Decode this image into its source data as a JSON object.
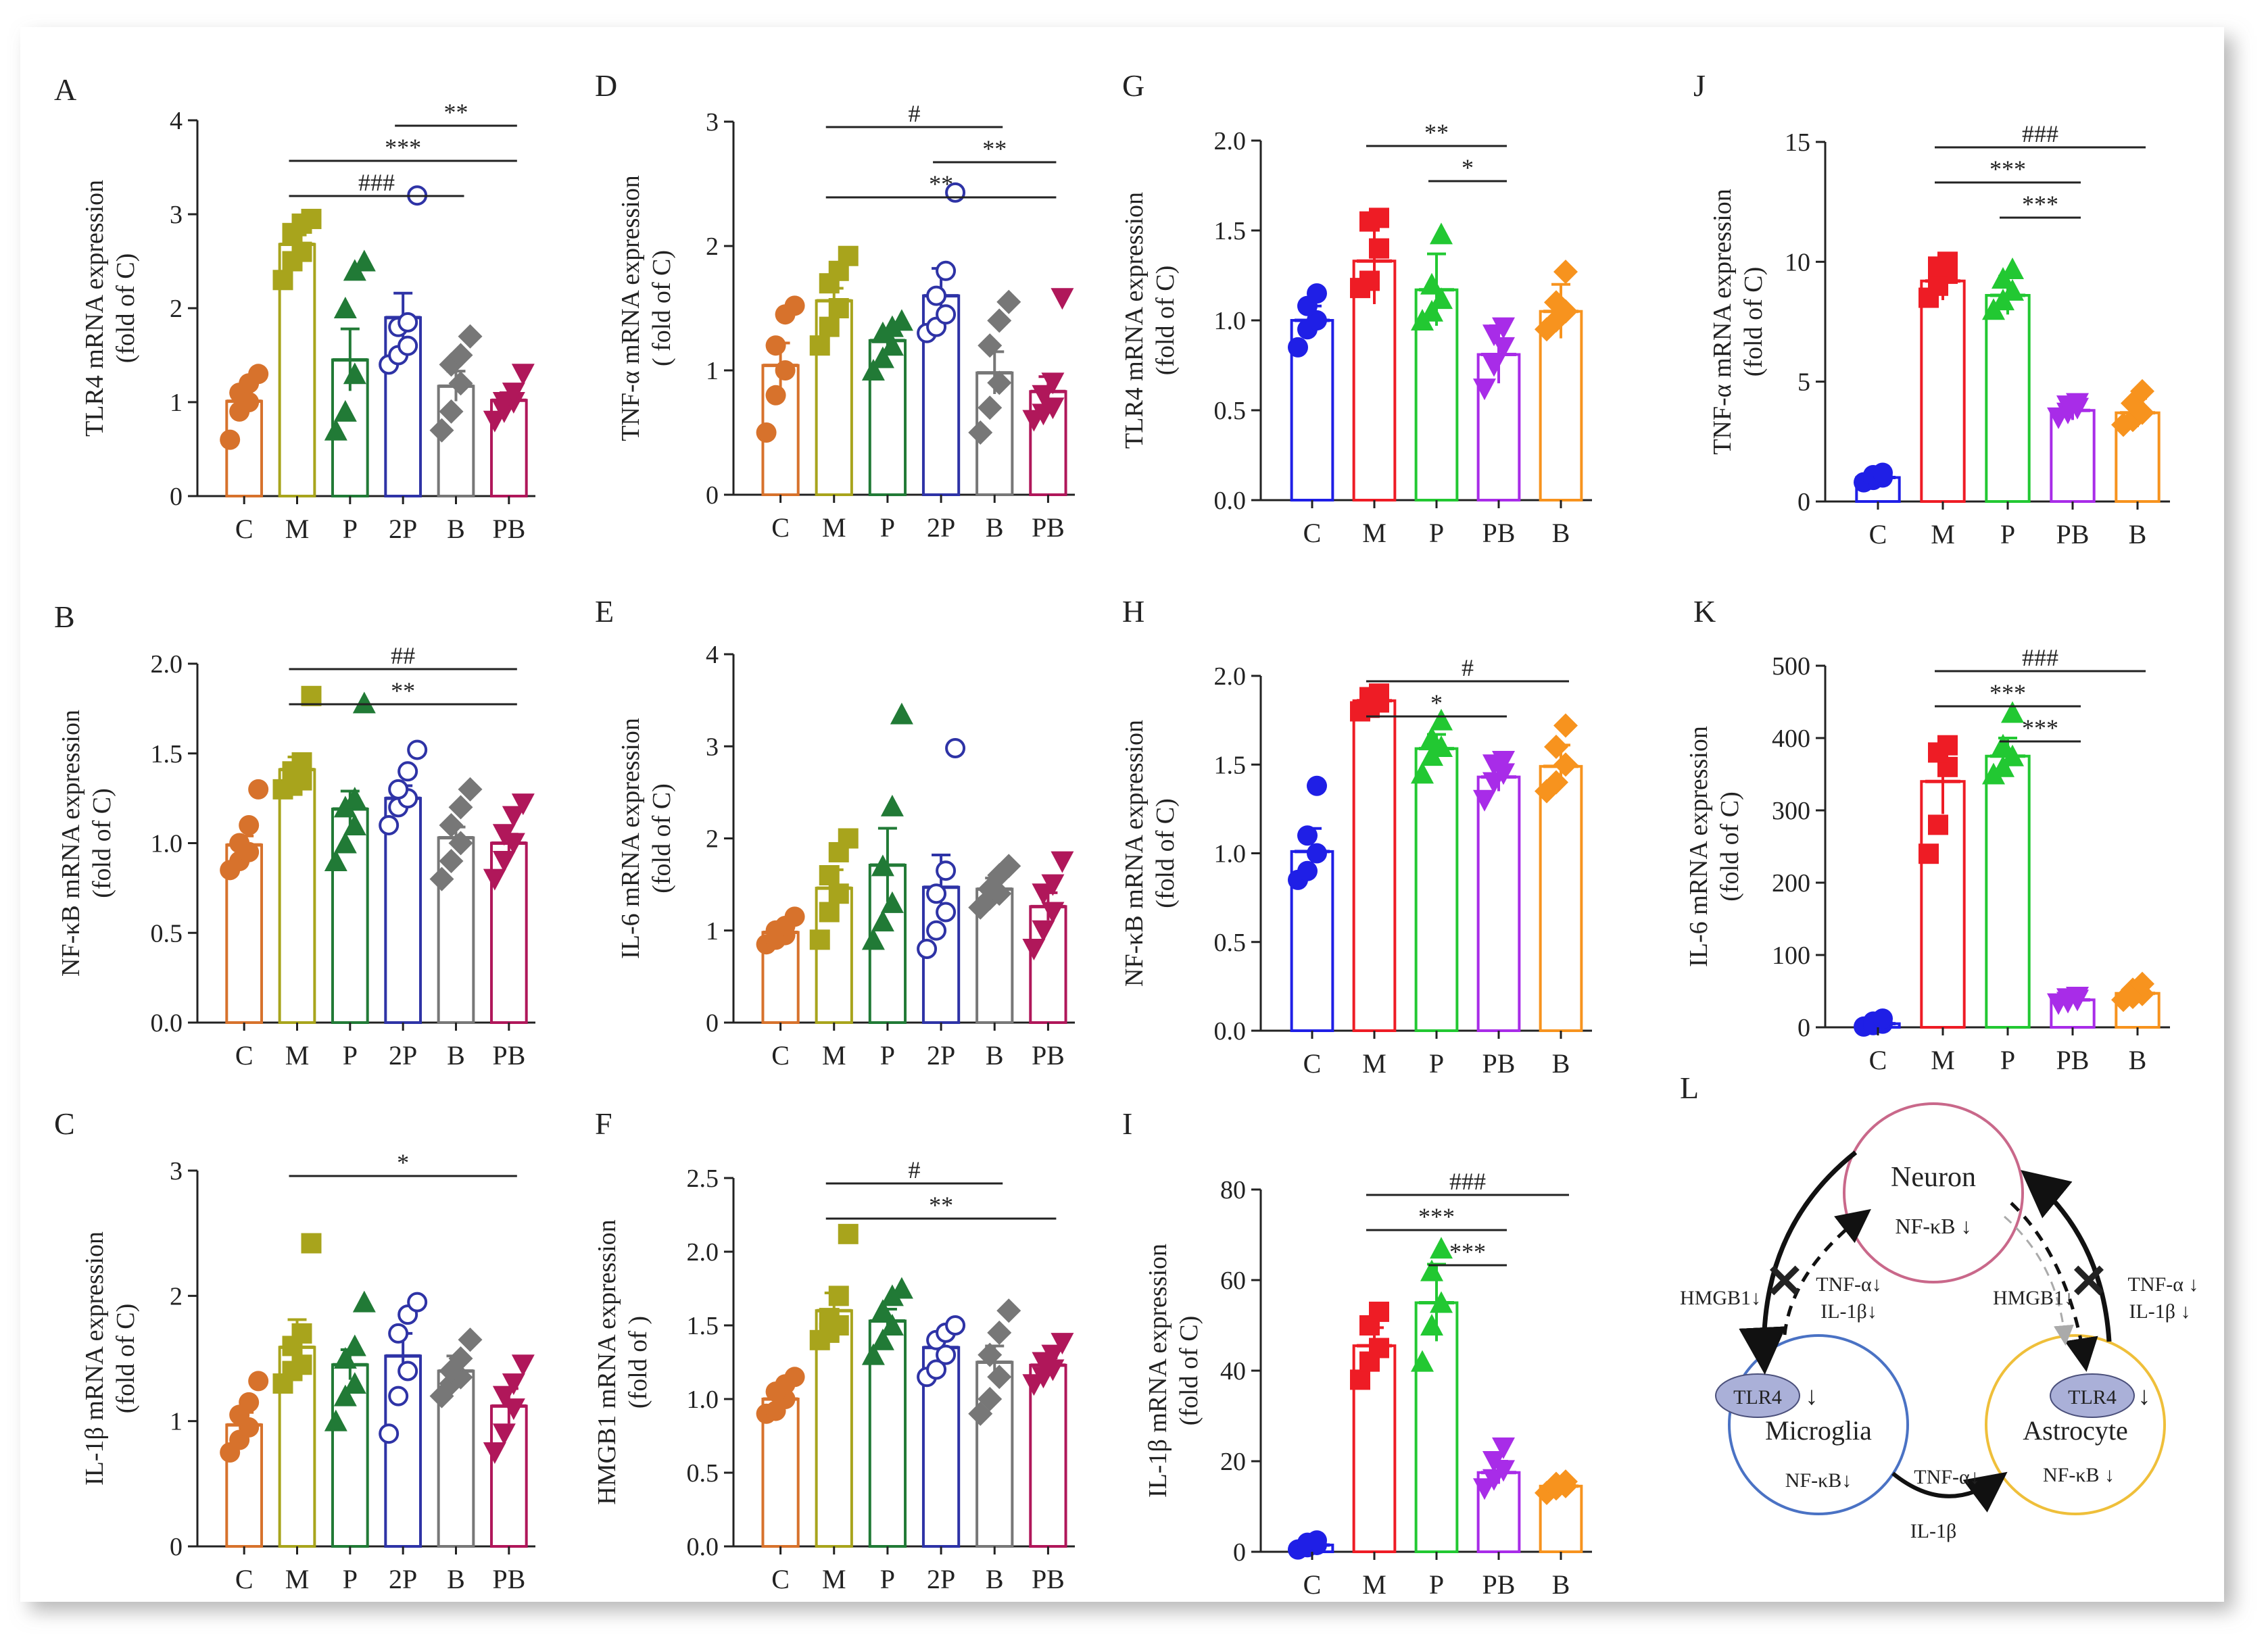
{
  "chart_data": [
    {
      "id": "A",
      "type": "bar",
      "panel_label": "A",
      "ylabel": [
        "TLR4 mRNA expression",
        "(fold of C)"
      ],
      "categories": [
        "C",
        "M",
        "P",
        "2P",
        "B",
        "PB"
      ],
      "values": [
        1.01,
        2.68,
        1.45,
        1.9,
        1.17,
        1.02
      ],
      "errors": [
        0.12,
        0.1,
        0.33,
        0.26,
        0.16,
        0.08
      ],
      "points": [
        [
          0.6,
          0.9,
          1.0,
          1.1,
          1.2,
          1.3
        ],
        [
          2.3,
          2.5,
          2.6,
          2.8,
          2.9,
          2.95
        ],
        [
          0.7,
          0.9,
          1.3,
          2.0,
          2.4,
          2.5
        ],
        [
          1.4,
          1.5,
          1.6,
          1.8,
          1.85,
          3.2
        ],
        [
          0.7,
          0.9,
          1.2,
          1.4,
          1.5,
          1.7
        ],
        [
          0.8,
          0.9,
          1.0,
          1.0,
          1.1,
          1.3
        ]
      ],
      "yticks": [
        "0",
        "1",
        "2",
        "3",
        "4"
      ],
      "ylim": [
        0,
        4
      ],
      "sig": [
        {
          "text": "**",
          "from": 3,
          "to": 5,
          "level": 0.0
        },
        {
          "text": "***",
          "from": 1,
          "to": 5,
          "level": 1.0
        },
        {
          "text": "###",
          "from": 1,
          "to": 4,
          "level": 2.0
        }
      ]
    },
    {
      "id": "B",
      "type": "bar",
      "panel_label": "B",
      "ylabel": [
        "NF-κB mRNA expression",
        "(fold of C)"
      ],
      "categories": [
        "C",
        "M",
        "P",
        "2P",
        "B",
        "PB"
      ],
      "values": [
        0.99,
        1.41,
        1.19,
        1.25,
        1.03,
        1.0
      ],
      "errors": [
        0.05,
        0.07,
        0.1,
        0.07,
        0.06,
        0.05
      ],
      "points": [
        [
          0.85,
          0.9,
          0.95,
          1.0,
          1.1,
          1.3
        ],
        [
          1.3,
          1.32,
          1.35,
          1.4,
          1.45,
          1.82
        ],
        [
          0.9,
          1.0,
          1.1,
          1.2,
          1.25,
          1.78
        ],
        [
          1.1,
          1.2,
          1.25,
          1.3,
          1.4,
          1.52
        ],
        [
          0.8,
          0.9,
          1.0,
          1.1,
          1.2,
          1.3
        ],
        [
          0.8,
          0.9,
          1.0,
          1.05,
          1.15,
          1.22
        ]
      ],
      "yticks": [
        "0.0",
        "0.5",
        "1.0",
        "1.5",
        "2.0"
      ],
      "ylim": [
        0,
        2
      ],
      "sig": [
        {
          "text": "##",
          "from": 1,
          "to": 5,
          "level": 0.0
        },
        {
          "text": "**",
          "from": 1,
          "to": 5,
          "level": 1.0
        }
      ]
    },
    {
      "id": "C",
      "type": "bar",
      "panel_label": "C",
      "ylabel": [
        "IL-1β mRNA expression",
        "(fold of C)"
      ],
      "categories": [
        "C",
        "M",
        "P",
        "2P",
        "B",
        "PB"
      ],
      "values": [
        0.97,
        1.59,
        1.45,
        1.52,
        1.4,
        1.12
      ],
      "errors": [
        0.1,
        0.22,
        0.12,
        0.18,
        0.12,
        0.14
      ],
      "points": [
        [
          0.75,
          0.85,
          0.95,
          1.05,
          1.15,
          1.32
        ],
        [
          1.3,
          1.4,
          1.45,
          1.6,
          1.7,
          2.42
        ],
        [
          1.0,
          1.2,
          1.3,
          1.5,
          1.6,
          1.95
        ],
        [
          0.9,
          1.2,
          1.4,
          1.7,
          1.85,
          1.95
        ],
        [
          1.2,
          1.3,
          1.35,
          1.4,
          1.5,
          1.65
        ],
        [
          0.75,
          0.9,
          1.1,
          1.2,
          1.3,
          1.45
        ]
      ],
      "yticks": [
        "0",
        "1",
        "2",
        "3"
      ],
      "ylim": [
        0,
        3
      ],
      "sig": [
        {
          "text": "*",
          "from": 1,
          "to": 5,
          "level": 0.0
        }
      ]
    },
    {
      "id": "D",
      "type": "bar",
      "panel_label": "D",
      "ylabel": [
        "TNF-α mRNA expression",
        "( fold of C)"
      ],
      "categories": [
        "C",
        "M",
        "P",
        "2P",
        "B",
        "PB"
      ],
      "values": [
        1.04,
        1.56,
        1.24,
        1.6,
        0.98,
        0.83
      ],
      "errors": [
        0.18,
        0.1,
        0.07,
        0.22,
        0.17,
        0.12
      ],
      "points": [
        [
          0.5,
          0.8,
          1.0,
          1.2,
          1.45,
          1.52
        ],
        [
          1.2,
          1.35,
          1.5,
          1.7,
          1.8,
          1.92
        ],
        [
          1.0,
          1.1,
          1.2,
          1.3,
          1.35,
          1.4
        ],
        [
          1.3,
          1.35,
          1.45,
          1.6,
          1.8,
          2.43
        ],
        [
          0.5,
          0.7,
          0.9,
          1.2,
          1.4,
          1.55
        ],
        [
          0.6,
          0.65,
          0.7,
          0.8,
          0.9,
          1.58
        ]
      ],
      "yticks": [
        "0",
        "1",
        "2",
        "3"
      ],
      "ylim": [
        0,
        3
      ],
      "sig": [
        {
          "text": "#",
          "from": 1,
          "to": 4,
          "level": 0.0
        },
        {
          "text": "**",
          "from": 3,
          "to": 5,
          "level": 1.0
        },
        {
          "text": "**",
          "from": 1,
          "to": 5,
          "level": 2.0
        }
      ]
    },
    {
      "id": "E",
      "type": "bar",
      "panel_label": "E",
      "ylabel": [
        "IL-6 mRNA expression",
        "(fold of C)"
      ],
      "categories": [
        "C",
        "M",
        "P",
        "2P",
        "B",
        "PB"
      ],
      "values": [
        0.98,
        1.46,
        1.71,
        1.47,
        1.45,
        1.26
      ],
      "errors": [
        0.06,
        0.2,
        0.4,
        0.35,
        0.12,
        0.15
      ],
      "points": [
        [
          0.85,
          0.9,
          0.95,
          1.0,
          1.05,
          1.15
        ],
        [
          0.9,
          1.2,
          1.4,
          1.6,
          1.85,
          2.0
        ],
        [
          0.9,
          1.1,
          1.3,
          1.7,
          2.35,
          3.35
        ],
        [
          0.8,
          1.0,
          1.2,
          1.4,
          1.65,
          2.98
        ],
        [
          1.25,
          1.35,
          1.4,
          1.45,
          1.6,
          1.7
        ],
        [
          0.8,
          1.0,
          1.2,
          1.4,
          1.5,
          1.75
        ]
      ],
      "yticks": [
        "0",
        "1",
        "2",
        "3",
        "4"
      ],
      "ylim": [
        0,
        4
      ],
      "sig": []
    },
    {
      "id": "F",
      "type": "bar",
      "panel_label": "F",
      "ylabel": [
        "HMGB1 mRNA expression",
        "(fold of   )"
      ],
      "categories": [
        "C",
        "M",
        "P",
        "2P",
        "B",
        "PB"
      ],
      "values": [
        1.0,
        1.6,
        1.53,
        1.35,
        1.25,
        1.23
      ],
      "errors": [
        0.06,
        0.12,
        0.08,
        0.08,
        0.11,
        0.05
      ],
      "points": [
        [
          0.9,
          0.92,
          1.0,
          1.05,
          1.1,
          1.15
        ],
        [
          1.4,
          1.45,
          1.5,
          1.55,
          1.7,
          2.12
        ],
        [
          1.3,
          1.4,
          1.5,
          1.6,
          1.7,
          1.75
        ],
        [
          1.15,
          1.2,
          1.3,
          1.4,
          1.45,
          1.5
        ],
        [
          0.9,
          1.0,
          1.15,
          1.3,
          1.45,
          1.6
        ],
        [
          1.1,
          1.15,
          1.2,
          1.25,
          1.3,
          1.38
        ]
      ],
      "yticks": [
        "0.0",
        "0.5",
        "1.0",
        "1.5",
        "2.0",
        "2.5"
      ],
      "ylim": [
        0,
        2.5
      ],
      "sig": [
        {
          "text": "#",
          "from": 1,
          "to": 4,
          "level": 0.0
        },
        {
          "text": "**",
          "from": 1,
          "to": 5,
          "level": 1.0
        }
      ]
    },
    {
      "id": "G",
      "type": "bar",
      "panel_label": "G",
      "ylabel": [
        "TLR4 mRNA expression",
        "(fold of C)"
      ],
      "categories": [
        "C",
        "M",
        "P",
        "PB",
        "B"
      ],
      "values": [
        1.0,
        1.33,
        1.17,
        0.81,
        1.05
      ],
      "errors": [
        0.08,
        0.24,
        0.2,
        0.16,
        0.15
      ],
      "points": [
        [
          0.85,
          0.95,
          1.0,
          1.08,
          1.15
        ],
        [
          1.18,
          1.22,
          1.4,
          1.55,
          1.57
        ],
        [
          1.0,
          1.05,
          1.12,
          1.2,
          1.48
        ],
        [
          0.62,
          0.75,
          0.85,
          0.92,
          0.96
        ],
        [
          0.95,
          1.0,
          1.05,
          1.1,
          1.27
        ]
      ],
      "yticks": [
        "0.0",
        "0.5",
        "1.0",
        "1.5",
        "2.0"
      ],
      "ylim": [
        0,
        2
      ],
      "sig": [
        {
          "text": "**",
          "from": 1,
          "to": 3,
          "level": 0.0
        },
        {
          "text": "*",
          "from": 2,
          "to": 3,
          "level": 1.0
        }
      ]
    },
    {
      "id": "H",
      "type": "bar",
      "panel_label": "H",
      "ylabel": [
        "NF-κB mRNA expression",
        "(fold of C)"
      ],
      "categories": [
        "C",
        "M",
        "P",
        "PB",
        "B"
      ],
      "values": [
        1.01,
        1.86,
        1.59,
        1.43,
        1.49
      ],
      "errors": [
        0.13,
        0.06,
        0.08,
        0.08,
        0.12
      ],
      "points": [
        [
          0.85,
          0.9,
          1.0,
          1.1,
          1.38
        ],
        [
          1.8,
          1.82,
          1.85,
          1.88,
          1.9
        ],
        [
          1.45,
          1.55,
          1.6,
          1.65,
          1.75
        ],
        [
          1.3,
          1.4,
          1.45,
          1.5,
          1.52
        ],
        [
          1.35,
          1.4,
          1.5,
          1.6,
          1.72
        ]
      ],
      "yticks": [
        "0.0",
        "0.5",
        "1.0",
        "1.5",
        "2.0"
      ],
      "ylim": [
        0,
        2
      ],
      "sig": [
        {
          "text": "#",
          "from": 1,
          "to": 4,
          "level": 0.0
        },
        {
          "text": "*",
          "from": 1,
          "to": 3,
          "level": 1.0
        }
      ]
    },
    {
      "id": "I",
      "type": "bar",
      "panel_label": "I",
      "ylabel": [
        "IL-1β mRNA expression",
        "(fold of C)"
      ],
      "categories": [
        "C",
        "M",
        "P",
        "PB",
        "B"
      ],
      "values": [
        1.5,
        45.5,
        55.0,
        17.5,
        14.5
      ],
      "errors": [
        0.6,
        4.0,
        8.5,
        2.5,
        1.0
      ],
      "points": [
        [
          0.5,
          1.0,
          1.5,
          2.0,
          2.5
        ],
        [
          38,
          42,
          45,
          50,
          53
        ],
        [
          42,
          50,
          55,
          62,
          67
        ],
        [
          14,
          16,
          18,
          20,
          23
        ],
        [
          13,
          14,
          14.5,
          15,
          15.5
        ]
      ],
      "yticks": [
        "0",
        "20",
        "40",
        "60",
        "80"
      ],
      "ylim": [
        0,
        80
      ],
      "sig": [
        {
          "text": "###",
          "from": 1,
          "to": 4,
          "level": 0.0
        },
        {
          "text": "***",
          "from": 1,
          "to": 3,
          "level": 1.0
        },
        {
          "text": "***",
          "from": 2,
          "to": 3,
          "level": 2.0
        }
      ]
    },
    {
      "id": "J",
      "type": "bar",
      "panel_label": "J",
      "ylabel": [
        "TNF-α mRNA expression",
        "(fold of C)"
      ],
      "categories": [
        "C",
        "M",
        "P",
        "PB",
        "B"
      ],
      "values": [
        1.0,
        9.2,
        8.6,
        3.8,
        3.7
      ],
      "errors": [
        0.1,
        0.8,
        0.8,
        0.4,
        0.6
      ],
      "points": [
        [
          0.8,
          0.9,
          1.0,
          1.1,
          1.2
        ],
        [
          8.5,
          9.0,
          9.5,
          9.8,
          10.0
        ],
        [
          8.0,
          8.4,
          8.8,
          9.3,
          9.7
        ],
        [
          3.5,
          3.7,
          3.9,
          4.0,
          4.1
        ],
        [
          3.2,
          3.4,
          3.7,
          4.1,
          4.6
        ]
      ],
      "yticks": [
        "0",
        "5",
        "10",
        "15"
      ],
      "ylim": [
        0,
        15
      ],
      "sig": [
        {
          "text": "###",
          "from": 1,
          "to": 4,
          "level": 0.0
        },
        {
          "text": "***",
          "from": 1,
          "to": 3,
          "level": 1.0
        },
        {
          "text": "***",
          "from": 2,
          "to": 3,
          "level": 2.0
        }
      ]
    },
    {
      "id": "K",
      "type": "bar",
      "panel_label": "K",
      "ylabel": [
        "IL-6 mRNA expression",
        "(fold of C)"
      ],
      "categories": [
        "C",
        "M",
        "P",
        "PB",
        "B"
      ],
      "values": [
        5,
        340,
        375,
        38,
        47
      ],
      "errors": [
        3,
        45,
        25,
        4,
        8
      ],
      "points": [
        [
          1,
          3,
          5,
          8,
          12
        ],
        [
          240,
          280,
          360,
          380,
          390
        ],
        [
          350,
          360,
          375,
          390,
          435
        ],
        [
          33,
          35,
          38,
          40,
          42
        ],
        [
          38,
          42,
          46,
          52,
          60
        ]
      ],
      "yticks": [
        "0",
        "100",
        "200",
        "300",
        "400",
        "500"
      ],
      "ylim": [
        0,
        500
      ],
      "sig": [
        {
          "text": "###",
          "from": 1,
          "to": 4,
          "level": 0.0
        },
        {
          "text": "***",
          "from": 1,
          "to": 3,
          "level": 1.0
        },
        {
          "text": "***",
          "from": 2,
          "to": 3,
          "level": 2.0
        }
      ]
    }
  ],
  "palettes": {
    "six": [
      "#d7722c",
      "#a8a41c",
      "#217a36",
      "#2e33a6",
      "#777777",
      "#b0175a"
    ],
    "five": [
      "#1f1fe6",
      "#ee1c25",
      "#22c832",
      "#a82ce8",
      "#f7931e"
    ]
  },
  "diagram_L": {
    "panel_label": "L",
    "neuron": {
      "title": "Neuron",
      "sub": "NF-κB ↓",
      "color": "#c9688a"
    },
    "microglia": {
      "title": "Microglia",
      "sub": "NF-κB↓",
      "receptor": "TLR4",
      "color": "#4a72c4"
    },
    "astrocyte": {
      "title": "Astrocyte",
      "sub": "NF-κB ↓",
      "receptor": "TLR4",
      "color": "#efbf3a"
    },
    "left_signal": "HMGB1↓",
    "left_cytokines": [
      "TNF-α↓",
      "IL-1β↓"
    ],
    "right_signal": "HMGB1↓",
    "right_cytokines": [
      "TNF-α ↓",
      "IL-1β ↓"
    ],
    "bottom_cytokines": [
      "TNF-α↓",
      "IL-1β"
    ],
    "block_color": "#e8232b"
  }
}
